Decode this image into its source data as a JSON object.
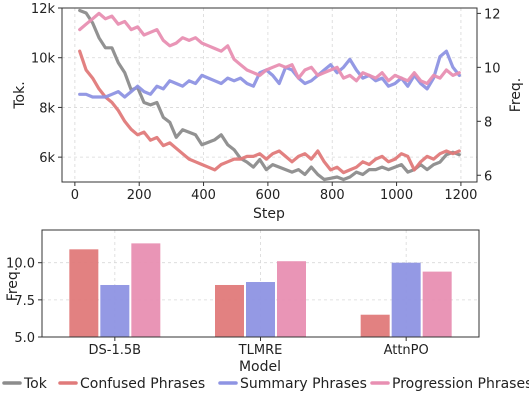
{
  "chart_data": [
    {
      "type": "line",
      "xlabel": "Step",
      "ylabel_left": "Tok.",
      "ylabel_right": "Freq.",
      "xlim": [
        -40,
        1250
      ],
      "ylim_left": [
        5000,
        12000
      ],
      "ylim_right": [
        5.75,
        12.2
      ],
      "grid": true,
      "x_ticks": [
        0,
        200,
        400,
        600,
        800,
        1000,
        1200
      ],
      "x_tick_labels": [
        "0",
        "200",
        "400",
        "600",
        "800",
        "1000",
        "1200"
      ],
      "y_left_ticks": [
        6000,
        8000,
        10000,
        12000
      ],
      "y_left_tick_labels": [
        "6k",
        "8k",
        "10k",
        "12k"
      ],
      "y_right_ticks": [
        6,
        8,
        10,
        12
      ],
      "y_right_tick_labels": [
        "6",
        "8",
        "10",
        "12"
      ],
      "series": [
        {
          "name": "Tok",
          "axis": "left",
          "color": "#8c8c8c",
          "x": [
            15,
            35,
            55,
            75,
            95,
            115,
            135,
            155,
            175,
            195,
            215,
            235,
            255,
            275,
            295,
            315,
            335,
            355,
            375,
            395,
            415,
            435,
            455,
            475,
            495,
            515,
            535,
            555,
            575,
            595,
            615,
            635,
            655,
            675,
            695,
            715,
            735,
            755,
            775,
            795,
            815,
            835,
            855,
            875,
            895,
            915,
            935,
            955,
            975,
            995,
            1015,
            1035,
            1055,
            1075,
            1095,
            1115,
            1135,
            1155,
            1175,
            1195
          ],
          "values": [
            11900,
            11800,
            11400,
            10800,
            10400,
            10400,
            9800,
            9400,
            8700,
            8800,
            8200,
            8100,
            8200,
            7600,
            7400,
            6800,
            7100,
            7000,
            6900,
            6500,
            6600,
            6700,
            6900,
            6500,
            6300,
            5950,
            5800,
            5600,
            5900,
            5500,
            5700,
            5600,
            5500,
            5400,
            5500,
            5300,
            5600,
            5300,
            5100,
            5150,
            5200,
            5100,
            5200,
            5400,
            5300,
            5500,
            5500,
            5600,
            5500,
            5600,
            5700,
            5400,
            5500,
            5700,
            5500,
            5700,
            5800,
            6100,
            6200,
            6100
          ]
        },
        {
          "name": "Confused Phrases",
          "axis": "right",
          "color": "#e07a7a",
          "x": [
            15,
            35,
            55,
            75,
            95,
            115,
            135,
            155,
            175,
            195,
            215,
            235,
            255,
            275,
            295,
            315,
            335,
            355,
            375,
            395,
            415,
            435,
            455,
            475,
            495,
            515,
            535,
            555,
            575,
            595,
            615,
            635,
            655,
            675,
            695,
            715,
            735,
            755,
            775,
            795,
            815,
            835,
            855,
            875,
            895,
            915,
            935,
            955,
            975,
            995,
            1015,
            1035,
            1055,
            1075,
            1095,
            1115,
            1135,
            1155,
            1175,
            1195
          ],
          "values": [
            10.6,
            9.9,
            9.6,
            9.2,
            8.9,
            8.7,
            8.4,
            8.0,
            7.7,
            7.5,
            7.6,
            7.3,
            7.4,
            7.1,
            7.2,
            7.0,
            6.8,
            6.6,
            6.5,
            6.4,
            6.3,
            6.2,
            6.4,
            6.5,
            6.6,
            6.6,
            6.7,
            6.7,
            6.8,
            6.6,
            6.8,
            6.9,
            6.7,
            6.5,
            6.7,
            6.8,
            6.6,
            6.9,
            6.5,
            6.2,
            6.3,
            6.1,
            6.2,
            6.3,
            6.5,
            6.4,
            6.6,
            6.7,
            6.5,
            6.6,
            6.8,
            6.7,
            6.2,
            6.5,
            6.7,
            6.6,
            6.8,
            6.9,
            6.8,
            6.9
          ]
        },
        {
          "name": "Summary Phrases",
          "axis": "right",
          "color": "#8e94e3",
          "x": [
            15,
            35,
            55,
            75,
            95,
            115,
            135,
            155,
            175,
            195,
            215,
            235,
            255,
            275,
            295,
            315,
            335,
            355,
            375,
            395,
            415,
            435,
            455,
            475,
            495,
            515,
            535,
            555,
            575,
            595,
            615,
            635,
            655,
            675,
            695,
            715,
            735,
            755,
            775,
            795,
            815,
            835,
            855,
            875,
            895,
            915,
            935,
            955,
            975,
            995,
            1015,
            1035,
            1055,
            1075,
            1095,
            1115,
            1135,
            1155,
            1175,
            1195
          ],
          "values": [
            9.0,
            9.0,
            8.9,
            8.9,
            8.9,
            9.0,
            9.1,
            8.9,
            9.1,
            9.3,
            9.1,
            9.0,
            9.3,
            9.2,
            9.5,
            9.4,
            9.3,
            9.5,
            9.4,
            9.7,
            9.6,
            9.5,
            9.4,
            9.6,
            9.5,
            9.6,
            9.4,
            9.3,
            9.8,
            9.9,
            9.7,
            9.4,
            10.0,
            9.9,
            9.6,
            9.4,
            9.5,
            9.7,
            9.9,
            10.1,
            9.8,
            10.0,
            10.3,
            9.9,
            9.6,
            9.7,
            9.5,
            9.6,
            9.3,
            9.4,
            9.6,
            9.3,
            9.7,
            9.4,
            9.2,
            9.6,
            10.4,
            10.6,
            10.0,
            9.7
          ]
        },
        {
          "name": "Progression Phrases",
          "axis": "right",
          "color": "#e88fb2",
          "x": [
            15,
            35,
            55,
            75,
            95,
            115,
            135,
            155,
            175,
            195,
            215,
            235,
            255,
            275,
            295,
            315,
            335,
            355,
            375,
            395,
            415,
            435,
            455,
            475,
            495,
            515,
            535,
            555,
            575,
            595,
            615,
            635,
            655,
            675,
            695,
            715,
            735,
            755,
            775,
            795,
            815,
            835,
            855,
            875,
            895,
            915,
            935,
            955,
            975,
            995,
            1015,
            1035,
            1055,
            1075,
            1095,
            1115,
            1135,
            1155,
            1175,
            1195
          ],
          "values": [
            11.4,
            11.6,
            11.8,
            12.0,
            11.8,
            11.9,
            11.6,
            11.7,
            11.4,
            11.5,
            11.2,
            11.3,
            11.4,
            11.0,
            10.8,
            10.9,
            11.1,
            11.0,
            11.1,
            10.9,
            10.8,
            10.7,
            10.6,
            10.8,
            10.3,
            10.1,
            9.9,
            9.8,
            9.7,
            9.9,
            10.0,
            10.1,
            10.0,
            10.1,
            9.6,
            9.9,
            10.0,
            9.7,
            9.8,
            9.9,
            10.0,
            9.6,
            9.7,
            9.5,
            9.8,
            9.7,
            9.6,
            9.8,
            9.5,
            9.7,
            9.6,
            9.5,
            9.8,
            9.5,
            9.4,
            9.7,
            9.6,
            9.9,
            9.7,
            9.8
          ]
        }
      ]
    },
    {
      "type": "bar",
      "xlabel": "Model",
      "ylabel": "Freq.",
      "ylim": [
        5.0,
        12.2
      ],
      "grid": true,
      "y_ticks": [
        5.0,
        7.5,
        10.0
      ],
      "y_tick_labels": [
        "5.0",
        "7.5",
        "10.0"
      ],
      "categories": [
        "DS-1.5B",
        "TLMRE",
        "AttnPO"
      ],
      "series": [
        {
          "name": "Confused Phrases",
          "color": "#e07a7a",
          "values": [
            10.9,
            8.5,
            6.5
          ]
        },
        {
          "name": "Summary Phrases",
          "color": "#8e94e3",
          "values": [
            8.5,
            8.7,
            10.0
          ]
        },
        {
          "name": "Progression Phrases",
          "color": "#e88fb2",
          "values": [
            11.3,
            10.1,
            9.4
          ]
        }
      ]
    }
  ],
  "legend": {
    "placement": "bottom",
    "items": [
      {
        "label": "Tok",
        "color": "#8c8c8c"
      },
      {
        "label": "Confused Phrases",
        "color": "#e07a7a"
      },
      {
        "label": "Summary Phrases",
        "color": "#8e94e3"
      },
      {
        "label": "Progression Phrases",
        "color": "#e88fb2"
      }
    ]
  }
}
